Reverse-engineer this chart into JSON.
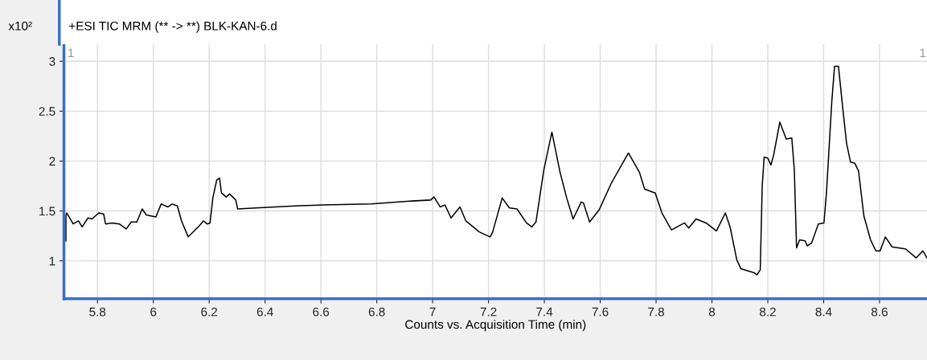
{
  "chart_data": {
    "type": "line",
    "title": "+ESI TIC MRM (** -> **) BLK-KAN-6.d",
    "xlabel": "Counts vs. Acquisition Time (min)",
    "ylabel": "x10²",
    "annotations": [
      "1",
      "1"
    ],
    "xlim": [
      5.68,
      8.77
    ],
    "ylim": [
      0.62,
      3.17
    ],
    "xticks": [
      5.8,
      6,
      6.2,
      6.4,
      6.6,
      6.8,
      7,
      7.2,
      7.4,
      7.6,
      7.8,
      8,
      8.2,
      8.4,
      8.6
    ],
    "yticks": [
      1,
      1.5,
      2,
      2.5,
      3
    ],
    "grid": true,
    "marker": "none",
    "line_style": "solid",
    "series": [
      {
        "color": "#000000",
        "x": [
          5.687,
          5.687,
          5.69,
          5.713,
          5.732,
          5.745,
          5.766,
          5.78,
          5.805,
          5.822,
          5.829,
          5.853,
          5.878,
          5.903,
          5.921,
          5.941,
          5.96,
          5.975,
          6.009,
          6.028,
          6.052,
          6.067,
          6.086,
          6.101,
          6.125,
          6.164,
          6.179,
          6.193,
          6.203,
          6.213,
          6.227,
          6.237,
          6.244,
          6.261,
          6.273,
          6.295,
          6.302,
          6.368,
          6.509,
          6.61,
          6.781,
          6.926,
          6.993,
          7.005,
          7.027,
          7.044,
          7.066,
          7.098,
          7.119,
          7.167,
          7.206,
          7.215,
          7.249,
          7.275,
          7.302,
          7.336,
          7.355,
          7.37,
          7.398,
          7.427,
          7.456,
          7.48,
          7.503,
          7.532,
          7.54,
          7.562,
          7.596,
          7.64,
          7.701,
          7.74,
          7.759,
          7.797,
          7.821,
          7.855,
          7.902,
          7.917,
          7.943,
          7.979,
          8.016,
          8.048,
          8.065,
          8.089,
          8.104,
          8.152,
          8.161,
          8.173,
          8.18,
          8.187,
          8.2,
          8.211,
          8.221,
          8.243,
          8.266,
          8.286,
          8.295,
          8.303,
          8.314,
          8.334,
          8.341,
          8.357,
          8.381,
          8.401,
          8.41,
          8.429,
          8.439,
          8.453,
          8.468,
          8.482,
          8.496,
          8.511,
          8.525,
          8.544,
          8.568,
          8.587,
          8.602,
          8.621,
          8.645,
          8.669,
          8.693,
          8.731,
          8.755,
          8.77
        ],
        "values": [
          1.2,
          1.45,
          1.48,
          1.37,
          1.4,
          1.34,
          1.43,
          1.42,
          1.48,
          1.47,
          1.37,
          1.38,
          1.37,
          1.32,
          1.39,
          1.39,
          1.52,
          1.46,
          1.44,
          1.57,
          1.54,
          1.57,
          1.55,
          1.4,
          1.24,
          1.35,
          1.4,
          1.37,
          1.38,
          1.63,
          1.81,
          1.83,
          1.68,
          1.64,
          1.67,
          1.61,
          1.52,
          1.53,
          1.55,
          1.56,
          1.57,
          1.6,
          1.61,
          1.64,
          1.54,
          1.56,
          1.43,
          1.54,
          1.4,
          1.29,
          1.24,
          1.29,
          1.63,
          1.53,
          1.52,
          1.38,
          1.34,
          1.39,
          1.91,
          2.29,
          1.89,
          1.63,
          1.42,
          1.59,
          1.58,
          1.39,
          1.51,
          1.78,
          2.08,
          1.89,
          1.72,
          1.68,
          1.48,
          1.31,
          1.38,
          1.33,
          1.42,
          1.38,
          1.3,
          1.48,
          1.34,
          1.01,
          0.92,
          0.88,
          0.86,
          0.91,
          1.75,
          2.04,
          2.03,
          1.96,
          2.06,
          2.39,
          2.22,
          2.23,
          1.91,
          1.13,
          1.21,
          1.2,
          1.15,
          1.18,
          1.37,
          1.38,
          1.68,
          2.59,
          2.95,
          2.95,
          2.54,
          2.18,
          1.99,
          1.98,
          1.9,
          1.45,
          1.21,
          1.1,
          1.1,
          1.24,
          1.14,
          1.13,
          1.12,
          1.03,
          1.1,
          1.03
        ]
      }
    ]
  }
}
